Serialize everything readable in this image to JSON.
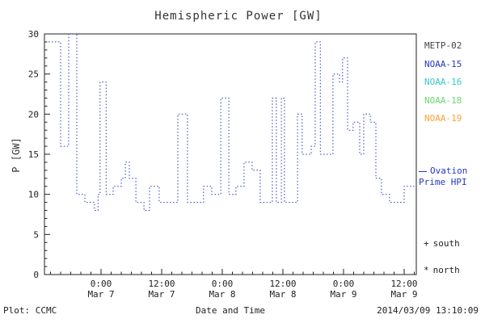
{
  "chart_data": {
    "type": "line",
    "style": "dotted-step",
    "title": "Hemispheric Power [GW]",
    "xlabel": "Date and Time",
    "ylabel": "P [GW]",
    "ylim": [
      0,
      30
    ],
    "y_ticks": [
      0,
      5,
      10,
      15,
      20,
      25,
      30
    ],
    "xlim": [
      0,
      73.6
    ],
    "x_unit": "hours from plot start",
    "grid": false,
    "legend_position": "right",
    "x_ticks": [
      {
        "pos": 11.2,
        "time": "0:00",
        "date": "Mar 7"
      },
      {
        "pos": 23.2,
        "time": "12:00",
        "date": "Mar 7"
      },
      {
        "pos": 35.2,
        "time": "0:00",
        "date": "Mar 8"
      },
      {
        "pos": 47.2,
        "time": "12:00",
        "date": "Mar 8"
      },
      {
        "pos": 59.2,
        "time": "0:00",
        "date": "Mar 9"
      },
      {
        "pos": 71.2,
        "time": "12:00",
        "date": "Mar 9"
      }
    ],
    "series": [
      {
        "name": "Ovation Prime HPI",
        "color": "#2636c4",
        "points": [
          [
            0.8,
            29
          ],
          [
            3.2,
            16
          ],
          [
            4.8,
            30
          ],
          [
            6.4,
            10
          ],
          [
            8.0,
            9
          ],
          [
            9.1,
            9
          ],
          [
            9.9,
            8
          ],
          [
            10.6,
            10
          ],
          [
            11.0,
            24
          ],
          [
            12.2,
            10
          ],
          [
            13.6,
            11
          ],
          [
            15.2,
            12
          ],
          [
            16.0,
            14
          ],
          [
            16.8,
            12
          ],
          [
            18.1,
            9
          ],
          [
            19.7,
            8
          ],
          [
            20.8,
            11
          ],
          [
            22.7,
            9
          ],
          [
            24.8,
            9
          ],
          [
            26.4,
            20
          ],
          [
            28.3,
            9
          ],
          [
            30.4,
            9
          ],
          [
            31.5,
            11
          ],
          [
            33.1,
            10
          ],
          [
            34.9,
            22
          ],
          [
            36.5,
            10
          ],
          [
            37.9,
            11
          ],
          [
            39.5,
            14
          ],
          [
            41.1,
            13
          ],
          [
            42.7,
            9
          ],
          [
            45.1,
            22
          ],
          [
            45.9,
            9
          ],
          [
            46.9,
            22
          ],
          [
            47.5,
            9
          ],
          [
            49.6,
            9
          ],
          [
            50.1,
            20
          ],
          [
            51.0,
            15
          ],
          [
            52.8,
            16
          ],
          [
            53.6,
            29
          ],
          [
            54.6,
            15
          ],
          [
            56.5,
            15
          ],
          [
            57.1,
            25
          ],
          [
            58.4,
            24
          ],
          [
            59.0,
            27
          ],
          [
            60.0,
            18
          ],
          [
            61.1,
            19
          ],
          [
            62.4,
            15
          ],
          [
            63.2,
            20
          ],
          [
            64.5,
            19
          ],
          [
            65.6,
            12
          ],
          [
            66.7,
            10
          ],
          [
            68.3,
            9
          ],
          [
            70.4,
            9
          ],
          [
            71.2,
            11
          ],
          [
            73.6,
            11
          ]
        ]
      }
    ]
  },
  "legend": {
    "satellites": [
      {
        "label": "METP-02",
        "color": "#444444"
      },
      {
        "label": "NOAA-15",
        "color": "#2636c4"
      },
      {
        "label": "NOAA-16",
        "color": "#35c8c8"
      },
      {
        "label": "NOAA-18",
        "color": "#6fd66f"
      },
      {
        "label": "NOAA-19",
        "color": "#ffa033"
      }
    ],
    "model": {
      "line1": "Ovation",
      "line2": "Prime HPI",
      "color": "#2636c4"
    },
    "markers": [
      {
        "symbol": "+",
        "label": "south"
      },
      {
        "symbol": "*",
        "label": "north"
      }
    ]
  },
  "footer": {
    "credit": "Plot: CCMC",
    "timestamp": "2014/03/09 13:10:09"
  }
}
